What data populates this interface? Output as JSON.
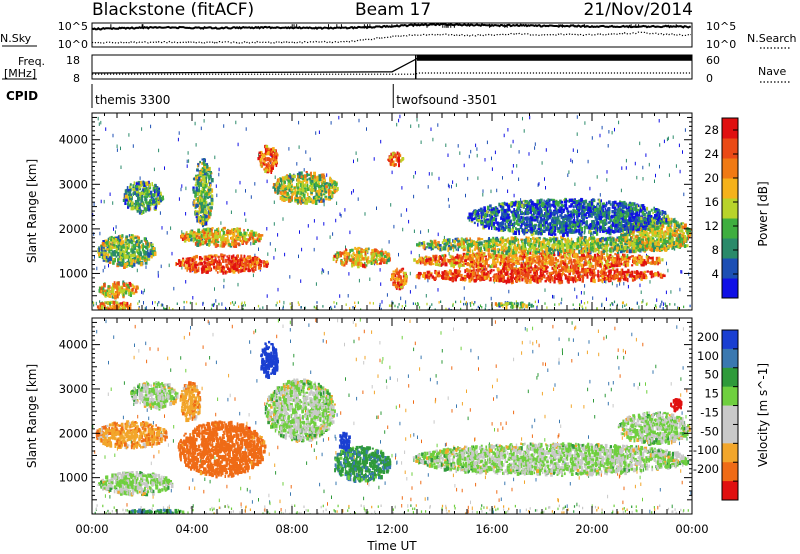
{
  "header": {
    "station": "Blackstone (fitACF)",
    "beam": "Beam 17",
    "date": "21/Nov/2014"
  },
  "strip_labels": {
    "nsky": "N.Sky",
    "nsky_hi": "10^5",
    "nsky_lo": "10^0",
    "nsearch_hi": "10^5",
    "nsearch_lo": "10^0",
    "nsearch": "N.Search",
    "freq": "Freq.",
    "freq_unit": "[MHz]",
    "freq_hi": "18",
    "freq_lo": "8",
    "nave_hi": "60",
    "nave_lo": "0",
    "nave": "Nave",
    "cpid": "CPID"
  },
  "cpid_segments": [
    {
      "start_hour": 0,
      "label": "themis 3300"
    },
    {
      "start_hour": 12.05,
      "label": "twofsound -3501"
    }
  ],
  "colors": {
    "power_scale": [
      "#1010e6",
      "#1c4fb4",
      "#2a8a6a",
      "#3fae3f",
      "#b8d32a",
      "#f5b21b",
      "#f07a14",
      "#ea4a16",
      "#e01010"
    ],
    "velocity_scale": [
      "#1a3fd1",
      "#3a78b0",
      "#2f9a3a",
      "#6fcf3f",
      "#c9c9c9",
      "#c9c9c9",
      "#f2a62b",
      "#ef6b16",
      "#e01010"
    ]
  },
  "chart_data": [
    {
      "type": "heatmap",
      "title": "",
      "xlabel": "Time UT",
      "ylabel": "Slant Range [km]",
      "xlim": [
        0,
        24
      ],
      "ylim": [
        180,
        4600
      ],
      "x_ticks": [
        "00:00",
        "04:00",
        "08:00",
        "12:00",
        "16:00",
        "20:00",
        "00:00"
      ],
      "y_ticks": [
        1000,
        2000,
        3000,
        4000
      ],
      "colorbar": {
        "label": "Power [dB]",
        "range": [
          0,
          30
        ],
        "ticks": [
          4,
          8,
          12,
          16,
          20,
          24,
          28
        ]
      },
      "structures": [
        {
          "x": [
            0.1,
            1.6
          ],
          "y": [
            180,
            400
          ],
          "level": 20
        },
        {
          "x": [
            0.2,
            1.8
          ],
          "y": [
            500,
            850
          ],
          "level": 18
        },
        {
          "x": [
            0.2,
            2.5
          ],
          "y": [
            1200,
            1900
          ],
          "level": 12
        },
        {
          "x": [
            1.2,
            2.8
          ],
          "y": [
            2400,
            3100
          ],
          "level": 10
        },
        {
          "x": [
            3.3,
            7.0
          ],
          "y": [
            1050,
            1450
          ],
          "level": 26
        },
        {
          "x": [
            3.5,
            6.8
          ],
          "y": [
            1650,
            2050
          ],
          "level": 18
        },
        {
          "x": [
            4.0,
            4.8
          ],
          "y": [
            2100,
            3600
          ],
          "level": 12
        },
        {
          "x": [
            6.6,
            7.4
          ],
          "y": [
            3300,
            3900
          ],
          "level": 24
        },
        {
          "x": [
            7.2,
            9.8
          ],
          "y": [
            2600,
            3300
          ],
          "level": 14
        },
        {
          "x": [
            9.6,
            11.9
          ],
          "y": [
            1200,
            1600
          ],
          "level": 18
        },
        {
          "x": [
            11.9,
            12.6
          ],
          "y": [
            700,
            1150
          ],
          "level": 22
        },
        {
          "x": [
            11.8,
            12.4
          ],
          "y": [
            3450,
            3750
          ],
          "level": 24
        },
        {
          "x": [
            12.8,
            22.9
          ],
          "y": [
            850,
            1150
          ],
          "level": 26
        },
        {
          "x": [
            12.8,
            22.9
          ],
          "y": [
            1150,
            1500
          ],
          "level": 22
        },
        {
          "x": [
            12.8,
            23.8
          ],
          "y": [
            1500,
            1850
          ],
          "level": 14
        },
        {
          "x": [
            21.0,
            23.9
          ],
          "y": [
            1550,
            2300
          ],
          "level": 16
        },
        {
          "x": [
            15.0,
            23.0
          ],
          "y": [
            1900,
            2700
          ],
          "level": 6
        },
        {
          "x": [
            16.0,
            17.6
          ],
          "y": [
            280,
            380
          ],
          "level": 12
        }
      ]
    },
    {
      "type": "heatmap",
      "title": "",
      "xlabel": "Time UT",
      "ylabel": "Slant Range [km]",
      "xlim": [
        0,
        24
      ],
      "ylim": [
        180,
        4600
      ],
      "x_ticks": [
        "00:00",
        "04:00",
        "08:00",
        "12:00",
        "16:00",
        "20:00",
        "00:00"
      ],
      "y_ticks": [
        1000,
        2000,
        3000,
        4000
      ],
      "colorbar": {
        "label": "Velocity [m s^-1]",
        "range": [
          -250,
          250
        ],
        "tick_labels": [
          "200",
          "100",
          "50",
          "15",
          "-15",
          "-50",
          "-100",
          "-200"
        ]
      },
      "structures": [
        {
          "x": [
            0.1,
            3.0
          ],
          "y": [
            1700,
            2300
          ],
          "level": -60
        },
        {
          "x": [
            0.2,
            3.2
          ],
          "y": [
            650,
            1150
          ],
          "level": 0
        },
        {
          "x": [
            1.5,
            3.4
          ],
          "y": [
            2600,
            3200
          ],
          "level": 0
        },
        {
          "x": [
            3.4,
            6.9
          ],
          "y": [
            1050,
            2300
          ],
          "level": -110
        },
        {
          "x": [
            3.5,
            4.3
          ],
          "y": [
            2300,
            3200
          ],
          "level": -60
        },
        {
          "x": [
            6.7,
            7.4
          ],
          "y": [
            3250,
            4100
          ],
          "level": 210
        },
        {
          "x": [
            6.9,
            9.7
          ],
          "y": [
            1850,
            3250
          ],
          "level": 0
        },
        {
          "x": [
            9.6,
            11.9
          ],
          "y": [
            950,
            1750
          ],
          "level": 60
        },
        {
          "x": [
            9.8,
            10.3
          ],
          "y": [
            1650,
            2050
          ],
          "level": 200
        },
        {
          "x": [
            12.8,
            23.9
          ],
          "y": [
            1100,
            1800
          ],
          "level": 0
        },
        {
          "x": [
            21.0,
            23.9
          ],
          "y": [
            1800,
            2500
          ],
          "level": 0
        },
        {
          "x": [
            1.4,
            3.6
          ],
          "y": [
            200,
            320
          ],
          "level": 60
        },
        {
          "x": [
            23.1,
            23.6
          ],
          "y": [
            2550,
            2800
          ],
          "level": -220
        }
      ]
    },
    {
      "type": "line",
      "title": "",
      "ylabel": "N.Sky / N.Search",
      "xlim": [
        0,
        24
      ],
      "series": [
        {
          "values": [
            0.75,
            0.78,
            0.8,
            0.82,
            0.8,
            0.79,
            0.8,
            0.81,
            0.8,
            0.79,
            0.8,
            0.82,
            0.86,
            0.92,
            0.94,
            0.92,
            0.9,
            0.9,
            0.88,
            0.88,
            0.86,
            0.85,
            0.85,
            0.86,
            0.83
          ]
        },
        {
          "values": [
            0.2,
            0.18,
            0.19,
            0.2,
            0.2,
            0.2,
            0.19,
            0.2,
            0.2,
            0.21,
            0.2,
            0.3,
            0.45,
            0.5,
            0.52,
            0.48,
            0.5,
            0.55,
            0.5,
            0.52,
            0.5,
            0.55,
            0.6,
            0.52,
            0.5
          ]
        }
      ]
    },
    {
      "type": "line",
      "title": "",
      "ylabel": "Freq. [MHz] / Nave",
      "xlim": [
        0,
        24
      ],
      "series": [
        {
          "x": [
            0,
            12,
            13,
            24
          ],
          "values": [
            10.5,
            11,
            16.5,
            16.5
          ]
        },
        {
          "x": [
            0,
            12.9,
            13.1,
            24
          ],
          "values": [
            4,
            4,
            5,
            5
          ]
        }
      ]
    }
  ]
}
